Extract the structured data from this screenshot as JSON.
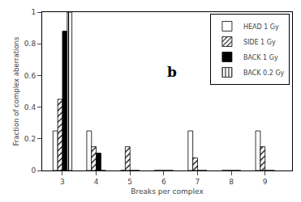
{
  "chart_data": {
    "type": "bar",
    "title": "b",
    "xlabel": "Breaks per complex",
    "ylabel": "Fraction of complex aberrations",
    "x": [
      3,
      4,
      5,
      6,
      7,
      8,
      9
    ],
    "series": [
      {
        "name": "HEAD 1 Gy",
        "color": "white",
        "values": [
          0.25,
          0.25,
          0.0,
          0.0,
          0.25,
          0.0,
          0.25
        ]
      },
      {
        "name": "SIDE 1 Gy",
        "color": "white",
        "marker": "diagonal",
        "values": [
          0.45,
          0.15,
          0.15,
          0.0,
          0.08,
          0.0,
          0.15
        ]
      },
      {
        "name": "BACK 1 Gy",
        "color": "black",
        "values": [
          0.88,
          0.11,
          0.0,
          0.0,
          0.0,
          0.0,
          0.0
        ]
      },
      {
        "name": "BACK 0.2 Gy",
        "color": "white",
        "marker": "vertical",
        "values": [
          1.0,
          0.0,
          0.0,
          0.0,
          0.0,
          0.0,
          0.0
        ]
      }
    ],
    "xlim": [
      2.4,
      9.8
    ],
    "ylim": [
      0,
      1
    ],
    "xticks": [
      3,
      4,
      5,
      6,
      7,
      8,
      9
    ],
    "yticks": [
      0,
      0.2,
      0.4,
      0.6,
      0.8,
      1
    ],
    "grid": false,
    "legend": "upper right"
  }
}
